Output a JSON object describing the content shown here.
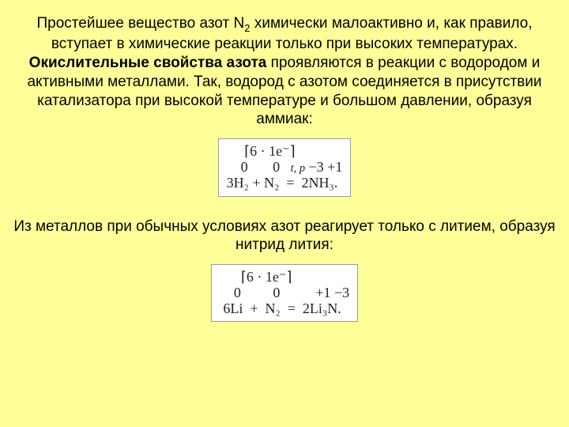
{
  "document": {
    "background_color": "#ffff99",
    "text_color": "#000000",
    "font_family": "Arial",
    "font_size_pt": 14,
    "align": "center"
  },
  "para1": {
    "pre": "Простейшее вещество азот N",
    "sub": "2",
    "post": " химически малоактивно и, как правило, вступает в химические реакции только при высоких температурах."
  },
  "para2": {
    "bold": "Окислительные свойства азота",
    "rest": " проявляются в реакции с водородом и активными металлами. Так, водород с азотом соединяется в присутствии катализатора при высокой температуре и большом давлении, образуя аммиак:"
  },
  "eq1": {
    "box_border_color": "#999999",
    "box_background": "#ffffff",
    "font_family": "Times New Roman",
    "lines": {
      "l1": "     ⌈6 · 1e⁻⌉",
      "l2_left": "    0       0   ",
      "l2_cond": "t, p",
      "l2_right": " −3 +1",
      "l3_left": "3H₂ + N₂  ",
      "l3_eq": "=",
      "l3_right": "  2NH₃."
    }
  },
  "para3": {
    "text": "Из металлов при обычных условиях азот реагирует только с литием, образуя нитрид лития:"
  },
  "eq2": {
    "box_border_color": "#999999",
    "box_background": "#ffffff",
    "font_family": "Times New Roman",
    "lines": {
      "l1": "      ⌈6 · 1e⁻⌉",
      "l2": "    0         0          +1 −3",
      "l3": " 6Li  +  N₂  =  2Li₃N."
    }
  }
}
